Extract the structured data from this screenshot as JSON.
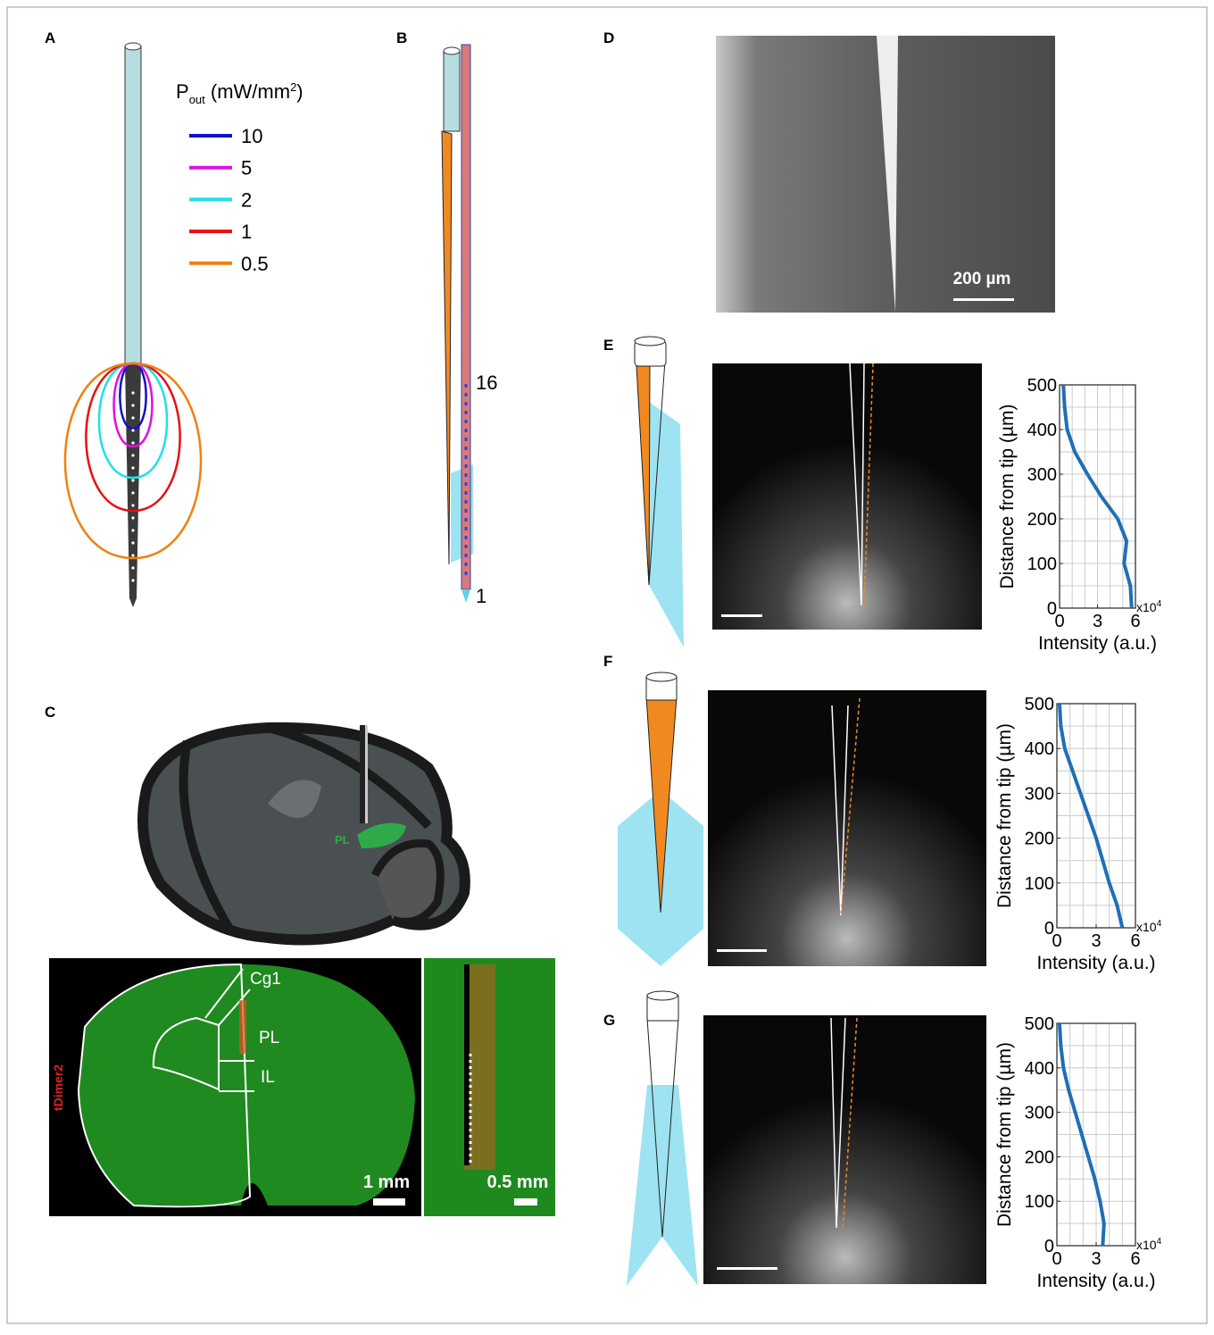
{
  "panel_labels": [
    "A",
    "B",
    "C",
    "D",
    "E",
    "F",
    "G"
  ],
  "panel_a": {
    "legend_title": {
      "p": "P",
      "sub": "out",
      "unit": " (mW/mm",
      "sup": "2",
      "close": ")"
    },
    "legend": [
      {
        "label": "10",
        "color": "#1010c8"
      },
      {
        "label": "5",
        "color": "#e010e0"
      },
      {
        "label": "2",
        "color": "#20e0e8"
      },
      {
        "label": "1",
        "color": "#e81010"
      },
      {
        "label": "0.5",
        "color": "#f08010"
      }
    ]
  },
  "panel_b": {
    "labels": [
      "16",
      "1"
    ]
  },
  "panel_c": {
    "region_3d": "PL",
    "regions": [
      "Cg1",
      "PL",
      "IL"
    ],
    "stain": "tDimer2",
    "scale_bars": [
      "1 mm",
      "0.5 mm"
    ]
  },
  "panel_d": {
    "scale_bar": "200 µm"
  },
  "chart_data": [
    {
      "type": "line",
      "y": [
        0,
        50,
        100,
        150,
        200,
        250,
        300,
        350,
        400,
        450,
        500
      ],
      "series": [
        {
          "color": "#1f6fb4",
          "values": [
            5.7,
            5.6,
            5.1,
            5.3,
            4.6,
            3.3,
            2.2,
            1.2,
            0.6,
            0.4,
            0.3
          ]
        }
      ],
      "xlim": [
        0,
        6
      ],
      "ylim": [
        0,
        500
      ],
      "xticks": [
        0,
        3,
        6
      ],
      "yticks": [
        0,
        100,
        200,
        300,
        400,
        500
      ],
      "grid": true,
      "xgrid": [
        1,
        2,
        3,
        4,
        5
      ],
      "ygrid": [
        50,
        100,
        150,
        200,
        250,
        300,
        350,
        400,
        450
      ],
      "xlabel": "Intensity (a.u.)",
      "ylabel": "Distance from tip (µm)",
      "multiplier": {
        "base": "x10",
        "exp": "4"
      }
    },
    {
      "type": "line",
      "y": [
        0,
        50,
        100,
        150,
        200,
        250,
        300,
        350,
        400,
        450,
        500
      ],
      "series": [
        {
          "color": "#1f6fb4",
          "values": [
            5.0,
            4.6,
            4.0,
            3.5,
            3.0,
            2.4,
            1.8,
            1.2,
            0.6,
            0.3,
            0.2
          ]
        }
      ],
      "xlim": [
        0,
        6
      ],
      "ylim": [
        0,
        500
      ],
      "xticks": [
        0,
        3,
        6
      ],
      "yticks": [
        0,
        100,
        200,
        300,
        400,
        500
      ],
      "grid": true,
      "xgrid": [
        1,
        2,
        3,
        4,
        5
      ],
      "ygrid": [
        50,
        100,
        150,
        200,
        250,
        300,
        350,
        400,
        450
      ],
      "xlabel": "Intensity (a.u.)",
      "ylabel": "Distance from tip (µm)",
      "multiplier": {
        "base": "x10",
        "exp": "4"
      }
    },
    {
      "type": "line",
      "y": [
        0,
        50,
        100,
        150,
        200,
        250,
        300,
        350,
        400,
        450,
        500
      ],
      "series": [
        {
          "color": "#1f6fb4",
          "values": [
            3.5,
            3.6,
            3.3,
            2.9,
            2.4,
            1.9,
            1.4,
            0.9,
            0.5,
            0.3,
            0.2
          ]
        }
      ],
      "xlim": [
        0,
        6
      ],
      "ylim": [
        0,
        500
      ],
      "xticks": [
        0,
        3,
        6
      ],
      "yticks": [
        0,
        100,
        200,
        300,
        400,
        500
      ],
      "grid": true,
      "xgrid": [
        1,
        2,
        3,
        4,
        5
      ],
      "ygrid": [
        50,
        100,
        150,
        200,
        250,
        300,
        350,
        400,
        450
      ],
      "xlabel": "Intensity (a.u.)",
      "ylabel": "Distance from tip (µm)",
      "multiplier": {
        "base": "x10",
        "exp": "4"
      }
    }
  ]
}
